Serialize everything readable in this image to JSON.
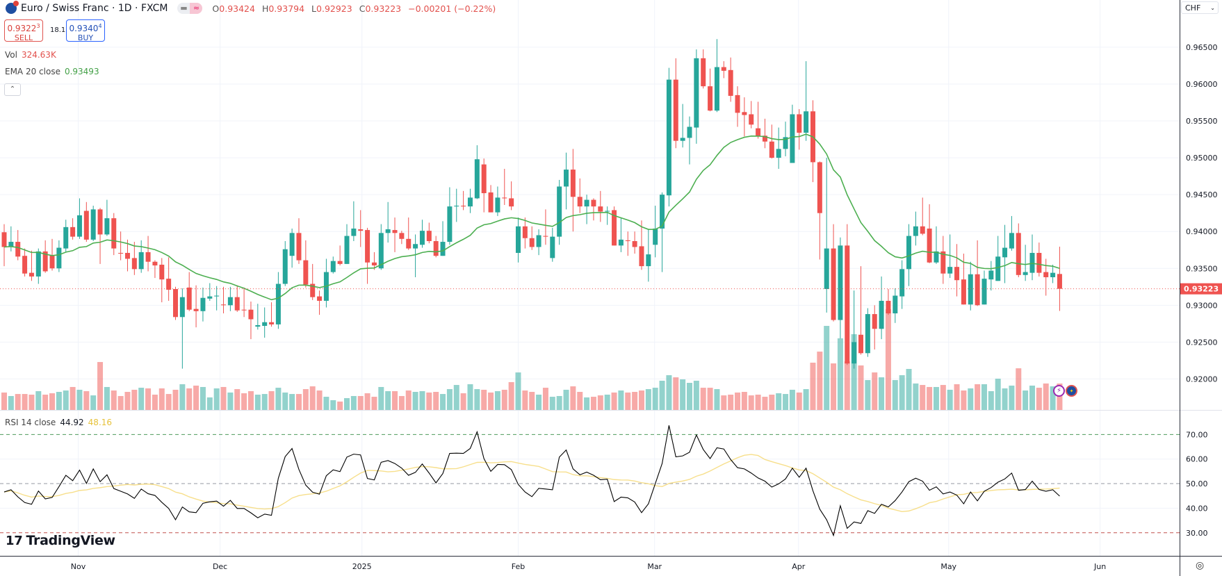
{
  "header": {
    "symbol_title": "Euro / Swiss Franc · 1D · FXCM",
    "toggle_icons": [
      "minus-icon",
      "approx-icon"
    ],
    "ohlc": {
      "o_label": "O",
      "o": "0.93424",
      "h_label": "H",
      "h": "0.93794",
      "l_label": "L",
      "l": "0.92923",
      "c_label": "C",
      "c": "0.93223",
      "change": "−0.00201 (−0.22%)"
    }
  },
  "trade": {
    "sell_price": "0.9322",
    "sell_sup": "3",
    "sell_label": "SELL",
    "spread": "18.1",
    "buy_price": "0.9340",
    "buy_sup": "4",
    "buy_label": "BUY"
  },
  "legend": {
    "vol_label": "Vol",
    "vol_value": "324.63K",
    "ema_label": "EMA 20 close",
    "ema_value": "0.93493",
    "rsi_label": "RSI 14 close",
    "rsi_value": "44.92",
    "rsi_ma_value": "48.16"
  },
  "currency": "CHF",
  "branding": "TradingView",
  "colors": {
    "up": "#26a69a",
    "down": "#ef5350",
    "ema": "#4caf50",
    "rsi": "#000000",
    "rsi_ma": "#f5d76e",
    "last_price": "#ef5350"
  },
  "chart_data": {
    "type": "candlestick",
    "price_axis": {
      "ticks": [
        0.965,
        0.96,
        0.955,
        0.95,
        0.945,
        0.94,
        0.935,
        0.93,
        0.925,
        0.92
      ],
      "ylim": [
        0.9158,
        0.9714
      ],
      "last_price": "0.93223"
    },
    "time_axis": [
      {
        "label": "Nov",
        "at_bar": 10.8
      },
      {
        "label": "Dec",
        "at_bar": 31.5
      },
      {
        "label": "2025",
        "at_bar": 52.2
      },
      {
        "label": "Feb",
        "at_bar": 75
      },
      {
        "label": "Mar",
        "at_bar": 94.9
      },
      {
        "label": "Apr",
        "at_bar": 115.9
      },
      {
        "label": "May",
        "at_bar": 137.8
      },
      {
        "label": "Jun",
        "at_bar": 159.9
      }
    ],
    "grid": true,
    "ohlc": [
      [
        0.9399,
        0.941,
        0.9353,
        0.9379
      ],
      [
        0.9379,
        0.9407,
        0.9373,
        0.9386
      ],
      [
        0.9386,
        0.9402,
        0.9361,
        0.9366
      ],
      [
        0.9367,
        0.9377,
        0.9339,
        0.9343
      ],
      [
        0.9344,
        0.9374,
        0.9333,
        0.9339
      ],
      [
        0.9339,
        0.9377,
        0.9329,
        0.9373
      ],
      [
        0.9373,
        0.9388,
        0.9344,
        0.9346
      ],
      [
        0.9368,
        0.939,
        0.9347,
        0.935
      ],
      [
        0.935,
        0.9388,
        0.9345,
        0.9378
      ],
      [
        0.9377,
        0.9416,
        0.9372,
        0.9406
      ],
      [
        0.9406,
        0.9418,
        0.9389,
        0.9393
      ],
      [
        0.9393,
        0.9445,
        0.939,
        0.9422
      ],
      [
        0.9428,
        0.944,
        0.9386,
        0.9389
      ],
      [
        0.9389,
        0.9435,
        0.9387,
        0.943
      ],
      [
        0.943,
        0.9432,
        0.9356,
        0.9396
      ],
      [
        0.9396,
        0.9443,
        0.9394,
        0.9418
      ],
      [
        0.9418,
        0.9425,
        0.9368,
        0.9377
      ],
      [
        0.9371,
        0.94,
        0.9361,
        0.937
      ],
      [
        0.9371,
        0.9389,
        0.9346,
        0.9363
      ],
      [
        0.9364,
        0.9386,
        0.9341,
        0.9349
      ],
      [
        0.9349,
        0.9388,
        0.9344,
        0.9372
      ],
      [
        0.9372,
        0.9394,
        0.9346,
        0.9359
      ],
      [
        0.9359,
        0.9361,
        0.9337,
        0.9354
      ],
      [
        0.9355,
        0.9364,
        0.9304,
        0.9335
      ],
      [
        0.9336,
        0.9365,
        0.9306,
        0.9321
      ],
      [
        0.9322,
        0.9325,
        0.928,
        0.9284
      ],
      [
        0.9284,
        0.9323,
        0.9214,
        0.9311
      ],
      [
        0.9324,
        0.9345,
        0.9292,
        0.9294
      ],
      [
        0.9295,
        0.9327,
        0.927,
        0.9292
      ],
      [
        0.9292,
        0.9324,
        0.9278,
        0.931
      ],
      [
        0.9309,
        0.933,
        0.9306,
        0.9312
      ],
      [
        0.9312,
        0.9326,
        0.9293,
        0.9313
      ],
      [
        0.9301,
        0.9325,
        0.9289,
        0.93
      ],
      [
        0.93,
        0.9325,
        0.9292,
        0.9311
      ],
      [
        0.9311,
        0.9327,
        0.9291,
        0.9293
      ],
      [
        0.9294,
        0.9324,
        0.9284,
        0.9293
      ],
      [
        0.9294,
        0.9305,
        0.9254,
        0.9281
      ],
      [
        0.9271,
        0.9302,
        0.9267,
        0.9273
      ],
      [
        0.9272,
        0.9297,
        0.9256,
        0.9277
      ],
      [
        0.9277,
        0.9304,
        0.9271,
        0.9274
      ],
      [
        0.9274,
        0.9345,
        0.9268,
        0.9329
      ],
      [
        0.9329,
        0.9387,
        0.9326,
        0.9376
      ],
      [
        0.9367,
        0.9404,
        0.9351,
        0.9398
      ],
      [
        0.9398,
        0.9418,
        0.9356,
        0.9361
      ],
      [
        0.9361,
        0.9388,
        0.9324,
        0.9328
      ],
      [
        0.9329,
        0.9356,
        0.9307,
        0.9311
      ],
      [
        0.9312,
        0.932,
        0.9287,
        0.9306
      ],
      [
        0.9306,
        0.9363,
        0.9297,
        0.9345
      ],
      [
        0.9345,
        0.9366,
        0.9343,
        0.936
      ],
      [
        0.936,
        0.9381,
        0.9354,
        0.9356
      ],
      [
        0.9356,
        0.941,
        0.9356,
        0.9394
      ],
      [
        0.9394,
        0.9441,
        0.9387,
        0.9404
      ],
      [
        0.9403,
        0.9429,
        0.9379,
        0.9401
      ],
      [
        0.9402,
        0.9405,
        0.9329,
        0.9358
      ],
      [
        0.9358,
        0.9372,
        0.9348,
        0.9354
      ],
      [
        0.935,
        0.941,
        0.9348,
        0.9398
      ],
      [
        0.9398,
        0.944,
        0.9385,
        0.9403
      ],
      [
        0.9402,
        0.9419,
        0.9372,
        0.9398
      ],
      [
        0.9398,
        0.9401,
        0.9383,
        0.939
      ],
      [
        0.939,
        0.9419,
        0.9375,
        0.9377
      ],
      [
        0.9377,
        0.9396,
        0.9338,
        0.9383
      ],
      [
        0.9382,
        0.9416,
        0.9378,
        0.9401
      ],
      [
        0.9401,
        0.9412,
        0.9384,
        0.9387
      ],
      [
        0.9387,
        0.9394,
        0.9365,
        0.9367
      ],
      [
        0.9367,
        0.9414,
        0.9367,
        0.9386
      ],
      [
        0.9386,
        0.946,
        0.9382,
        0.9434
      ],
      [
        0.9434,
        0.9458,
        0.9413,
        0.9435
      ],
      [
        0.9435,
        0.9455,
        0.9429,
        0.9434
      ],
      [
        0.9434,
        0.9458,
        0.9425,
        0.9446
      ],
      [
        0.9445,
        0.9517,
        0.9444,
        0.9498
      ],
      [
        0.9491,
        0.9499,
        0.9426,
        0.9452
      ],
      [
        0.9453,
        0.9463,
        0.9426,
        0.9426
      ],
      [
        0.9426,
        0.9461,
        0.9421,
        0.9446
      ],
      [
        0.9446,
        0.9485,
        0.9436,
        0.9445
      ],
      [
        0.9445,
        0.9468,
        0.9429,
        0.9434
      ],
      [
        0.9371,
        0.9419,
        0.9358,
        0.9407
      ],
      [
        0.9407,
        0.9419,
        0.9377,
        0.9391
      ],
      [
        0.9391,
        0.9407,
        0.9375,
        0.9379
      ],
      [
        0.9379,
        0.9403,
        0.9368,
        0.9395
      ],
      [
        0.9394,
        0.943,
        0.9382,
        0.9393
      ],
      [
        0.9364,
        0.9405,
        0.9359,
        0.9393
      ],
      [
        0.9393,
        0.947,
        0.9382,
        0.9461
      ],
      [
        0.9461,
        0.9507,
        0.943,
        0.9484
      ],
      [
        0.9484,
        0.9512,
        0.94,
        0.9447
      ],
      [
        0.9447,
        0.9472,
        0.9425,
        0.9434
      ],
      [
        0.9434,
        0.945,
        0.941,
        0.9443
      ],
      [
        0.9443,
        0.9445,
        0.9415,
        0.9434
      ],
      [
        0.9434,
        0.9455,
        0.9413,
        0.9427
      ],
      [
        0.9427,
        0.9434,
        0.9409,
        0.9428
      ],
      [
        0.9429,
        0.9434,
        0.9381,
        0.9381
      ],
      [
        0.9381,
        0.9419,
        0.9372,
        0.9389
      ],
      [
        0.9388,
        0.94,
        0.9367,
        0.9387
      ],
      [
        0.9387,
        0.94,
        0.937,
        0.9379
      ],
      [
        0.938,
        0.9415,
        0.9348,
        0.9353
      ],
      [
        0.9353,
        0.9403,
        0.9332,
        0.9369
      ],
      [
        0.9382,
        0.9435,
        0.9365,
        0.9404
      ],
      [
        0.9404,
        0.9453,
        0.9345,
        0.945
      ],
      [
        0.9449,
        0.9622,
        0.9434,
        0.9606
      ],
      [
        0.9606,
        0.9635,
        0.9513,
        0.9523
      ],
      [
        0.9523,
        0.9573,
        0.9514,
        0.9527
      ],
      [
        0.9527,
        0.9556,
        0.9491,
        0.9542
      ],
      [
        0.9541,
        0.9647,
        0.9519,
        0.9635
      ],
      [
        0.9635,
        0.9647,
        0.9594,
        0.9597
      ],
      [
        0.9597,
        0.9621,
        0.9563,
        0.9564
      ],
      [
        0.9564,
        0.9661,
        0.9562,
        0.9623
      ],
      [
        0.9623,
        0.9631,
        0.9608,
        0.9618
      ],
      [
        0.9619,
        0.9636,
        0.9576,
        0.9584
      ],
      [
        0.9585,
        0.9597,
        0.9542,
        0.9561
      ],
      [
        0.9562,
        0.9582,
        0.9529,
        0.9558
      ],
      [
        0.9559,
        0.9577,
        0.954,
        0.9545
      ],
      [
        0.954,
        0.9576,
        0.9526,
        0.9529
      ],
      [
        0.953,
        0.9553,
        0.9513,
        0.9522
      ],
      [
        0.9522,
        0.9545,
        0.9499,
        0.95
      ],
      [
        0.95,
        0.9541,
        0.9485,
        0.9512
      ],
      [
        0.9512,
        0.9549,
        0.9502,
        0.9528
      ],
      [
        0.9493,
        0.9572,
        0.9493,
        0.9559
      ],
      [
        0.9559,
        0.9566,
        0.9511,
        0.9534
      ],
      [
        0.9534,
        0.9631,
        0.9523,
        0.9563
      ],
      [
        0.9563,
        0.9578,
        0.9467,
        0.9494
      ],
      [
        0.9494,
        0.9495,
        0.9362,
        0.9425
      ],
      [
        0.9322,
        0.95,
        0.929,
        0.9377
      ],
      [
        0.9377,
        0.941,
        0.9278,
        0.928
      ],
      [
        0.928,
        0.9392,
        0.9255,
        0.9381
      ],
      [
        0.9381,
        0.941,
        0.9219,
        0.9221
      ],
      [
        0.9221,
        0.932,
        0.9214,
        0.925
      ],
      [
        0.926,
        0.9353,
        0.9233,
        0.9235
      ],
      [
        0.9235,
        0.9296,
        0.923,
        0.9288
      ],
      [
        0.9288,
        0.93,
        0.924,
        0.9268
      ],
      [
        0.9268,
        0.9339,
        0.9254,
        0.9306
      ],
      [
        0.9306,
        0.9322,
        0.9287,
        0.9289
      ],
      [
        0.9289,
        0.9323,
        0.9276,
        0.9313
      ],
      [
        0.9312,
        0.9361,
        0.9295,
        0.9349
      ],
      [
        0.9349,
        0.941,
        0.9326,
        0.9394
      ],
      [
        0.9394,
        0.9427,
        0.9381,
        0.9407
      ],
      [
        0.9407,
        0.9446,
        0.9395,
        0.9397
      ],
      [
        0.9404,
        0.9437,
        0.9357,
        0.9358
      ],
      [
        0.9358,
        0.9407,
        0.9356,
        0.9373
      ],
      [
        0.9373,
        0.9394,
        0.9329,
        0.9343
      ],
      [
        0.9343,
        0.9396,
        0.9337,
        0.9352
      ],
      [
        0.9352,
        0.9383,
        0.9312,
        0.9334
      ],
      [
        0.9335,
        0.937,
        0.9301,
        0.9301
      ],
      [
        0.9301,
        0.9359,
        0.9293,
        0.9342
      ],
      [
        0.9342,
        0.9388,
        0.9299,
        0.93
      ],
      [
        0.9301,
        0.9347,
        0.9301,
        0.9336
      ],
      [
        0.9335,
        0.936,
        0.932,
        0.9347
      ],
      [
        0.9333,
        0.9394,
        0.9333,
        0.9366
      ],
      [
        0.9365,
        0.9409,
        0.933,
        0.9378
      ],
      [
        0.9377,
        0.9421,
        0.9374,
        0.9398
      ],
      [
        0.9398,
        0.9411,
        0.9338,
        0.9341
      ],
      [
        0.9341,
        0.9382,
        0.9333,
        0.9345
      ],
      [
        0.9344,
        0.9396,
        0.9334,
        0.9371
      ],
      [
        0.9371,
        0.9385,
        0.9339,
        0.9344
      ],
      [
        0.9345,
        0.9363,
        0.9313,
        0.9338
      ],
      [
        0.9338,
        0.9355,
        0.933,
        0.9344
      ],
      [
        0.93424,
        0.93794,
        0.92923,
        0.93223
      ]
    ],
    "volume_k": [
      214,
      171,
      196,
      196,
      188,
      231,
      188,
      205,
      222,
      239,
      282,
      248,
      231,
      179,
      589,
      282,
      239,
      171,
      222,
      248,
      273,
      265,
      188,
      265,
      196,
      248,
      316,
      265,
      299,
      282,
      154,
      265,
      282,
      214,
      256,
      205,
      231,
      188,
      196,
      231,
      273,
      214,
      196,
      196,
      256,
      290,
      239,
      162,
      120,
      103,
      145,
      171,
      171,
      205,
      162,
      282,
      231,
      231,
      171,
      239,
      222,
      231,
      214,
      222,
      196,
      256,
      307,
      205,
      316,
      256,
      248,
      214,
      231,
      248,
      342,
      461,
      239,
      222,
      188,
      273,
      162,
      171,
      248,
      290,
      222,
      154,
      162,
      179,
      188,
      214,
      239,
      214,
      222,
      239,
      256,
      273,
      359,
      427,
      401,
      376,
      333,
      359,
      273,
      273,
      256,
      179,
      188,
      214,
      222,
      179,
      188,
      162,
      188,
      205,
      196,
      248,
      214,
      256,
      581,
      717,
      1033,
      572,
      880,
      598,
      931,
      547,
      367,
      461,
      401,
      1238,
      367,
      427,
      504,
      325,
      307,
      282,
      282,
      307,
      248,
      316,
      239,
      265,
      316,
      316,
      231,
      384,
      265,
      299,
      512,
      239,
      299,
      273,
      325,
      290,
      324.63
    ],
    "ema_period": 20,
    "rsi": {
      "period": 14,
      "ma_period": 14,
      "ticks": [
        70,
        60,
        50,
        40,
        30
      ],
      "ylim": [
        20.6,
        80
      ],
      "bands": {
        "upper": 70,
        "middle": 50,
        "lower": 30
      },
      "values": [
        46.6,
        47.5,
        44.6,
        42.3,
        41.6,
        47,
        43.8,
        44.4,
        48.8,
        53.4,
        51.2,
        55.5,
        50.1,
        56,
        50.8,
        53.6,
        48,
        46.9,
        45.8,
        44,
        47.8,
        45.9,
        45.2,
        42.4,
        39.9,
        35.3,
        40.5,
        38.5,
        38.2,
        42,
        42.6,
        42.9,
        40.8,
        43.2,
        39.9,
        39.9,
        38.1,
        36.1,
        37.6,
        37.1,
        52.2,
        61,
        64.3,
        55.8,
        49.4,
        46.5,
        45.7,
        53.2,
        55.6,
        54.9,
        60.8,
        62,
        61.7,
        52.1,
        51.5,
        58.7,
        59.4,
        58.2,
        56.3,
        53.4,
        54.6,
        58,
        54.3,
        50.3,
        54.1,
        62.3,
        62.4,
        62.3,
        64.3,
        71.1,
        60.2,
        55,
        57.8,
        57.7,
        55.7,
        49.7,
        46.6,
        44.7,
        48.1,
        47.8,
        47.5,
        60.8,
        63.7,
        56,
        53.6,
        54.7,
        53.4,
        51.6,
        51.8,
        42.7,
        44.5,
        44.2,
        42.5,
        38.2,
        41.8,
        50,
        58.2,
        73.7,
        60.9,
        61.3,
        62.8,
        69.8,
        63.9,
        60.2,
        64.6,
        64.1,
        59.8,
        56.5,
        56,
        54.3,
        52.3,
        51,
        48.6,
        49.9,
        51.9,
        56.3,
        52.6,
        56.3,
        47.1,
        39.6,
        35.3,
        28.9,
        41,
        31.8,
        34.4,
        33.8,
        39,
        37.9,
        41.6,
        40.5,
        43.1,
        46.6,
        50.8,
        52.2,
        51,
        47.3,
        48.7,
        45.8,
        46.6,
        45.3,
        41.8,
        46.6,
        43,
        46.9,
        48.4,
        50.6,
        51.9,
        54.3,
        47.3,
        47.6,
        51,
        47.6,
        46.9,
        47.5,
        44.92
      ]
    }
  }
}
